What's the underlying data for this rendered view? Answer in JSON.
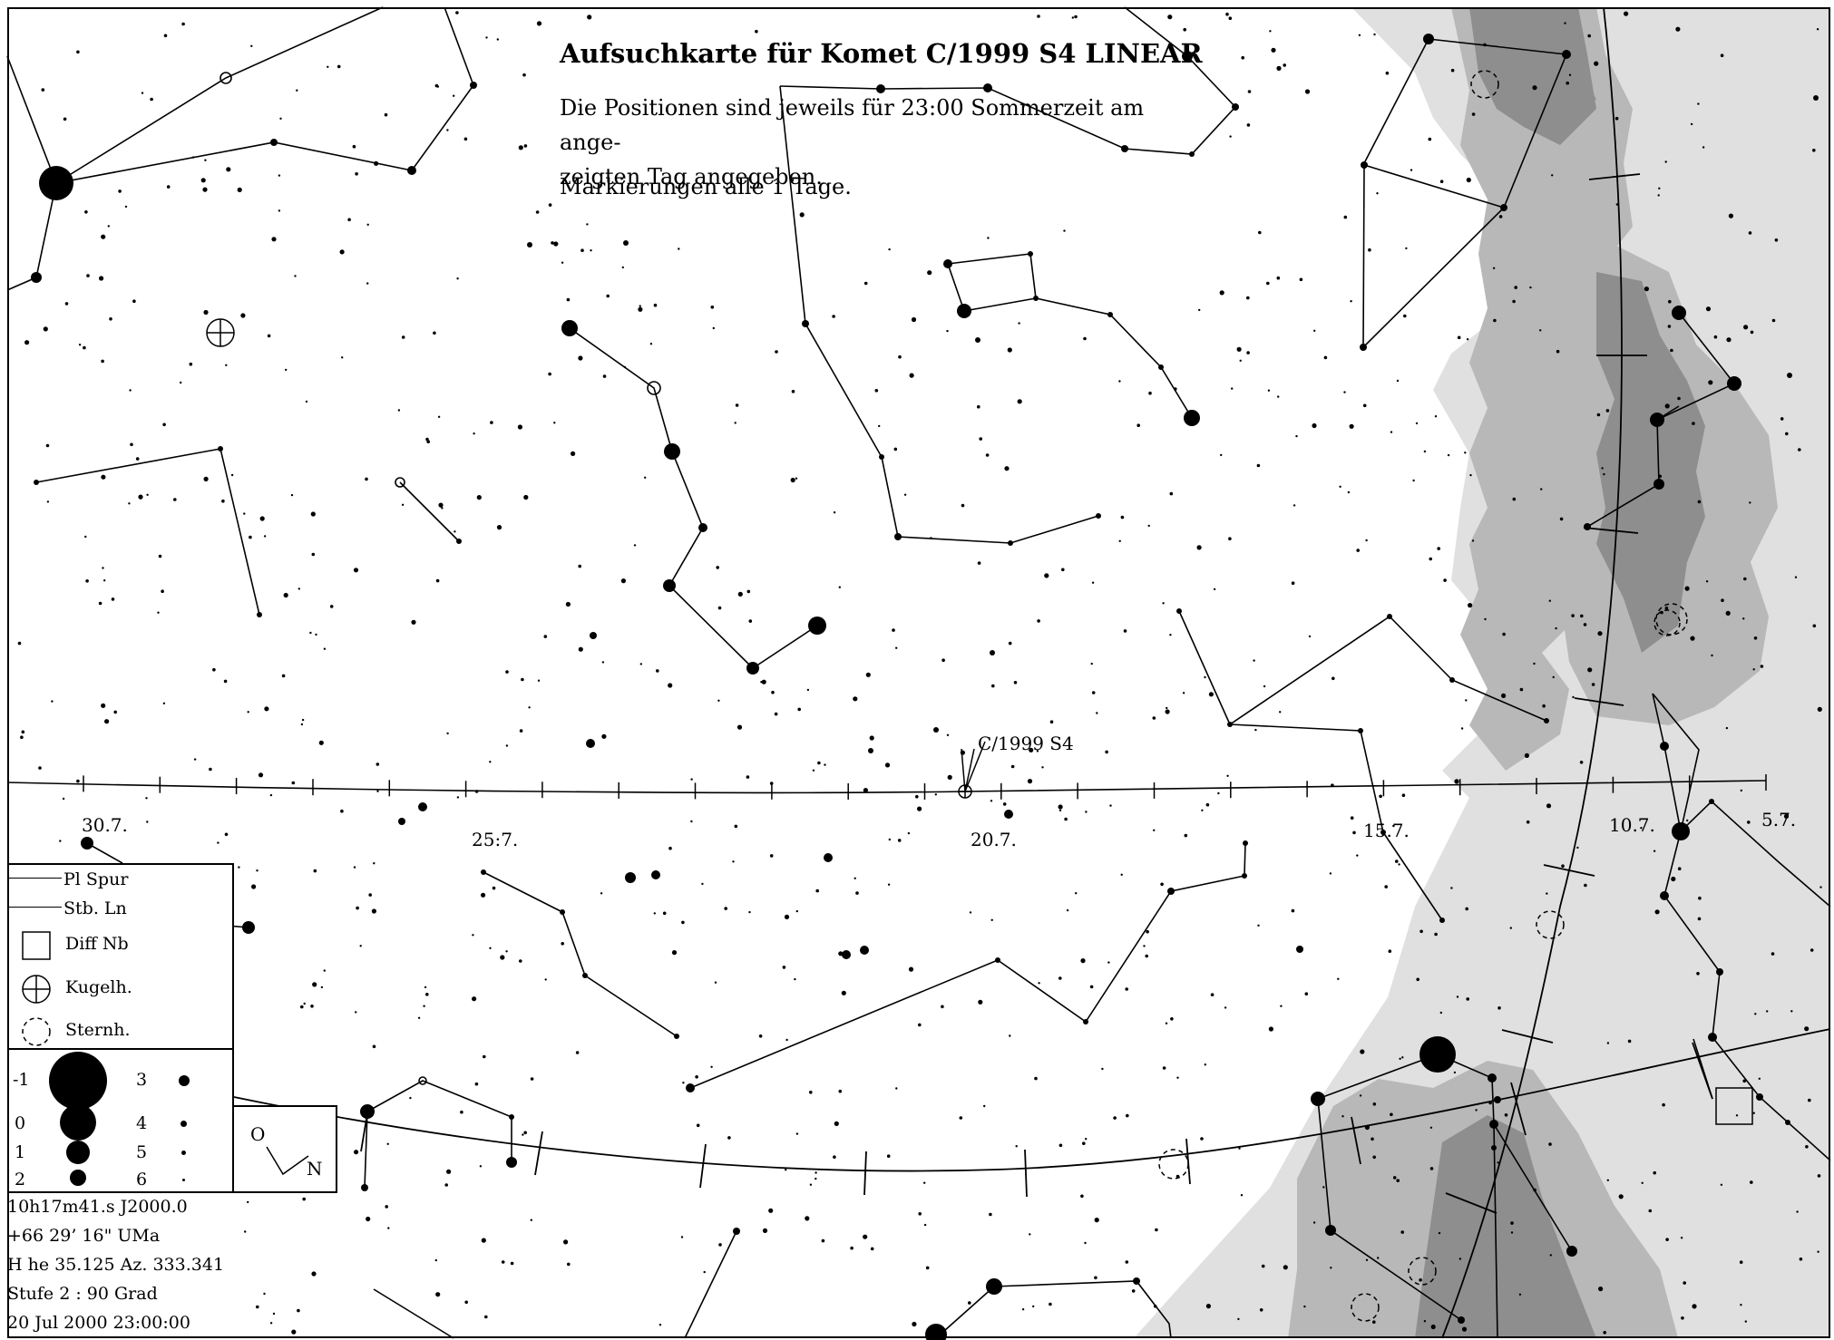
{
  "chart": {
    "title": "Aufsuchkarte für Komet C/1999 S4 LINEAR",
    "subtitle": "Die Positionen sind jeweils für 23:00 Sommerzeit am ange-zeigten Tag angegeben.",
    "subtitle_line1": "Die Positionen sind jeweils für 23:00 Sommerzeit am ange-",
    "subtitle_line2": "zeigten Tag angegeben.",
    "marker_note": "Markierungen alle 1 Tage."
  },
  "comet": {
    "label": "C/1999 S4"
  },
  "track_dates": [
    "30.7.",
    "25:7.",
    "20.7.",
    "15.7.",
    "10.7.",
    "5.7."
  ],
  "legend": {
    "items": [
      {
        "label": "Pl Spur",
        "icon": "line"
      },
      {
        "label": "Stb. Ln",
        "icon": "line"
      },
      {
        "label": "Diff Nb",
        "icon": "square"
      },
      {
        "label": "Kugelh.",
        "icon": "circle-cross"
      },
      {
        "label": "Sternh.",
        "icon": "dashed-circle"
      }
    ],
    "magnitudes": [
      "-1",
      "0",
      "1",
      "2",
      "3",
      "4",
      "5",
      "6"
    ]
  },
  "compass": {
    "o": "O",
    "n": "N"
  },
  "info": {
    "coords": "10h17m41.s   J2000.0",
    "dec": "+66 29’ 16\"      UMa",
    "altaz": "H he 35.125   Az. 333.341",
    "stufe": "Stufe 2 : 90 Grad",
    "date": "20 Jul 2000 23:00:00"
  },
  "colors": {
    "milky_way_1": "#e0e0e0",
    "milky_way_2": "#b8b8b8",
    "milky_way_3": "#8e8e8e",
    "ink": "#000000"
  }
}
